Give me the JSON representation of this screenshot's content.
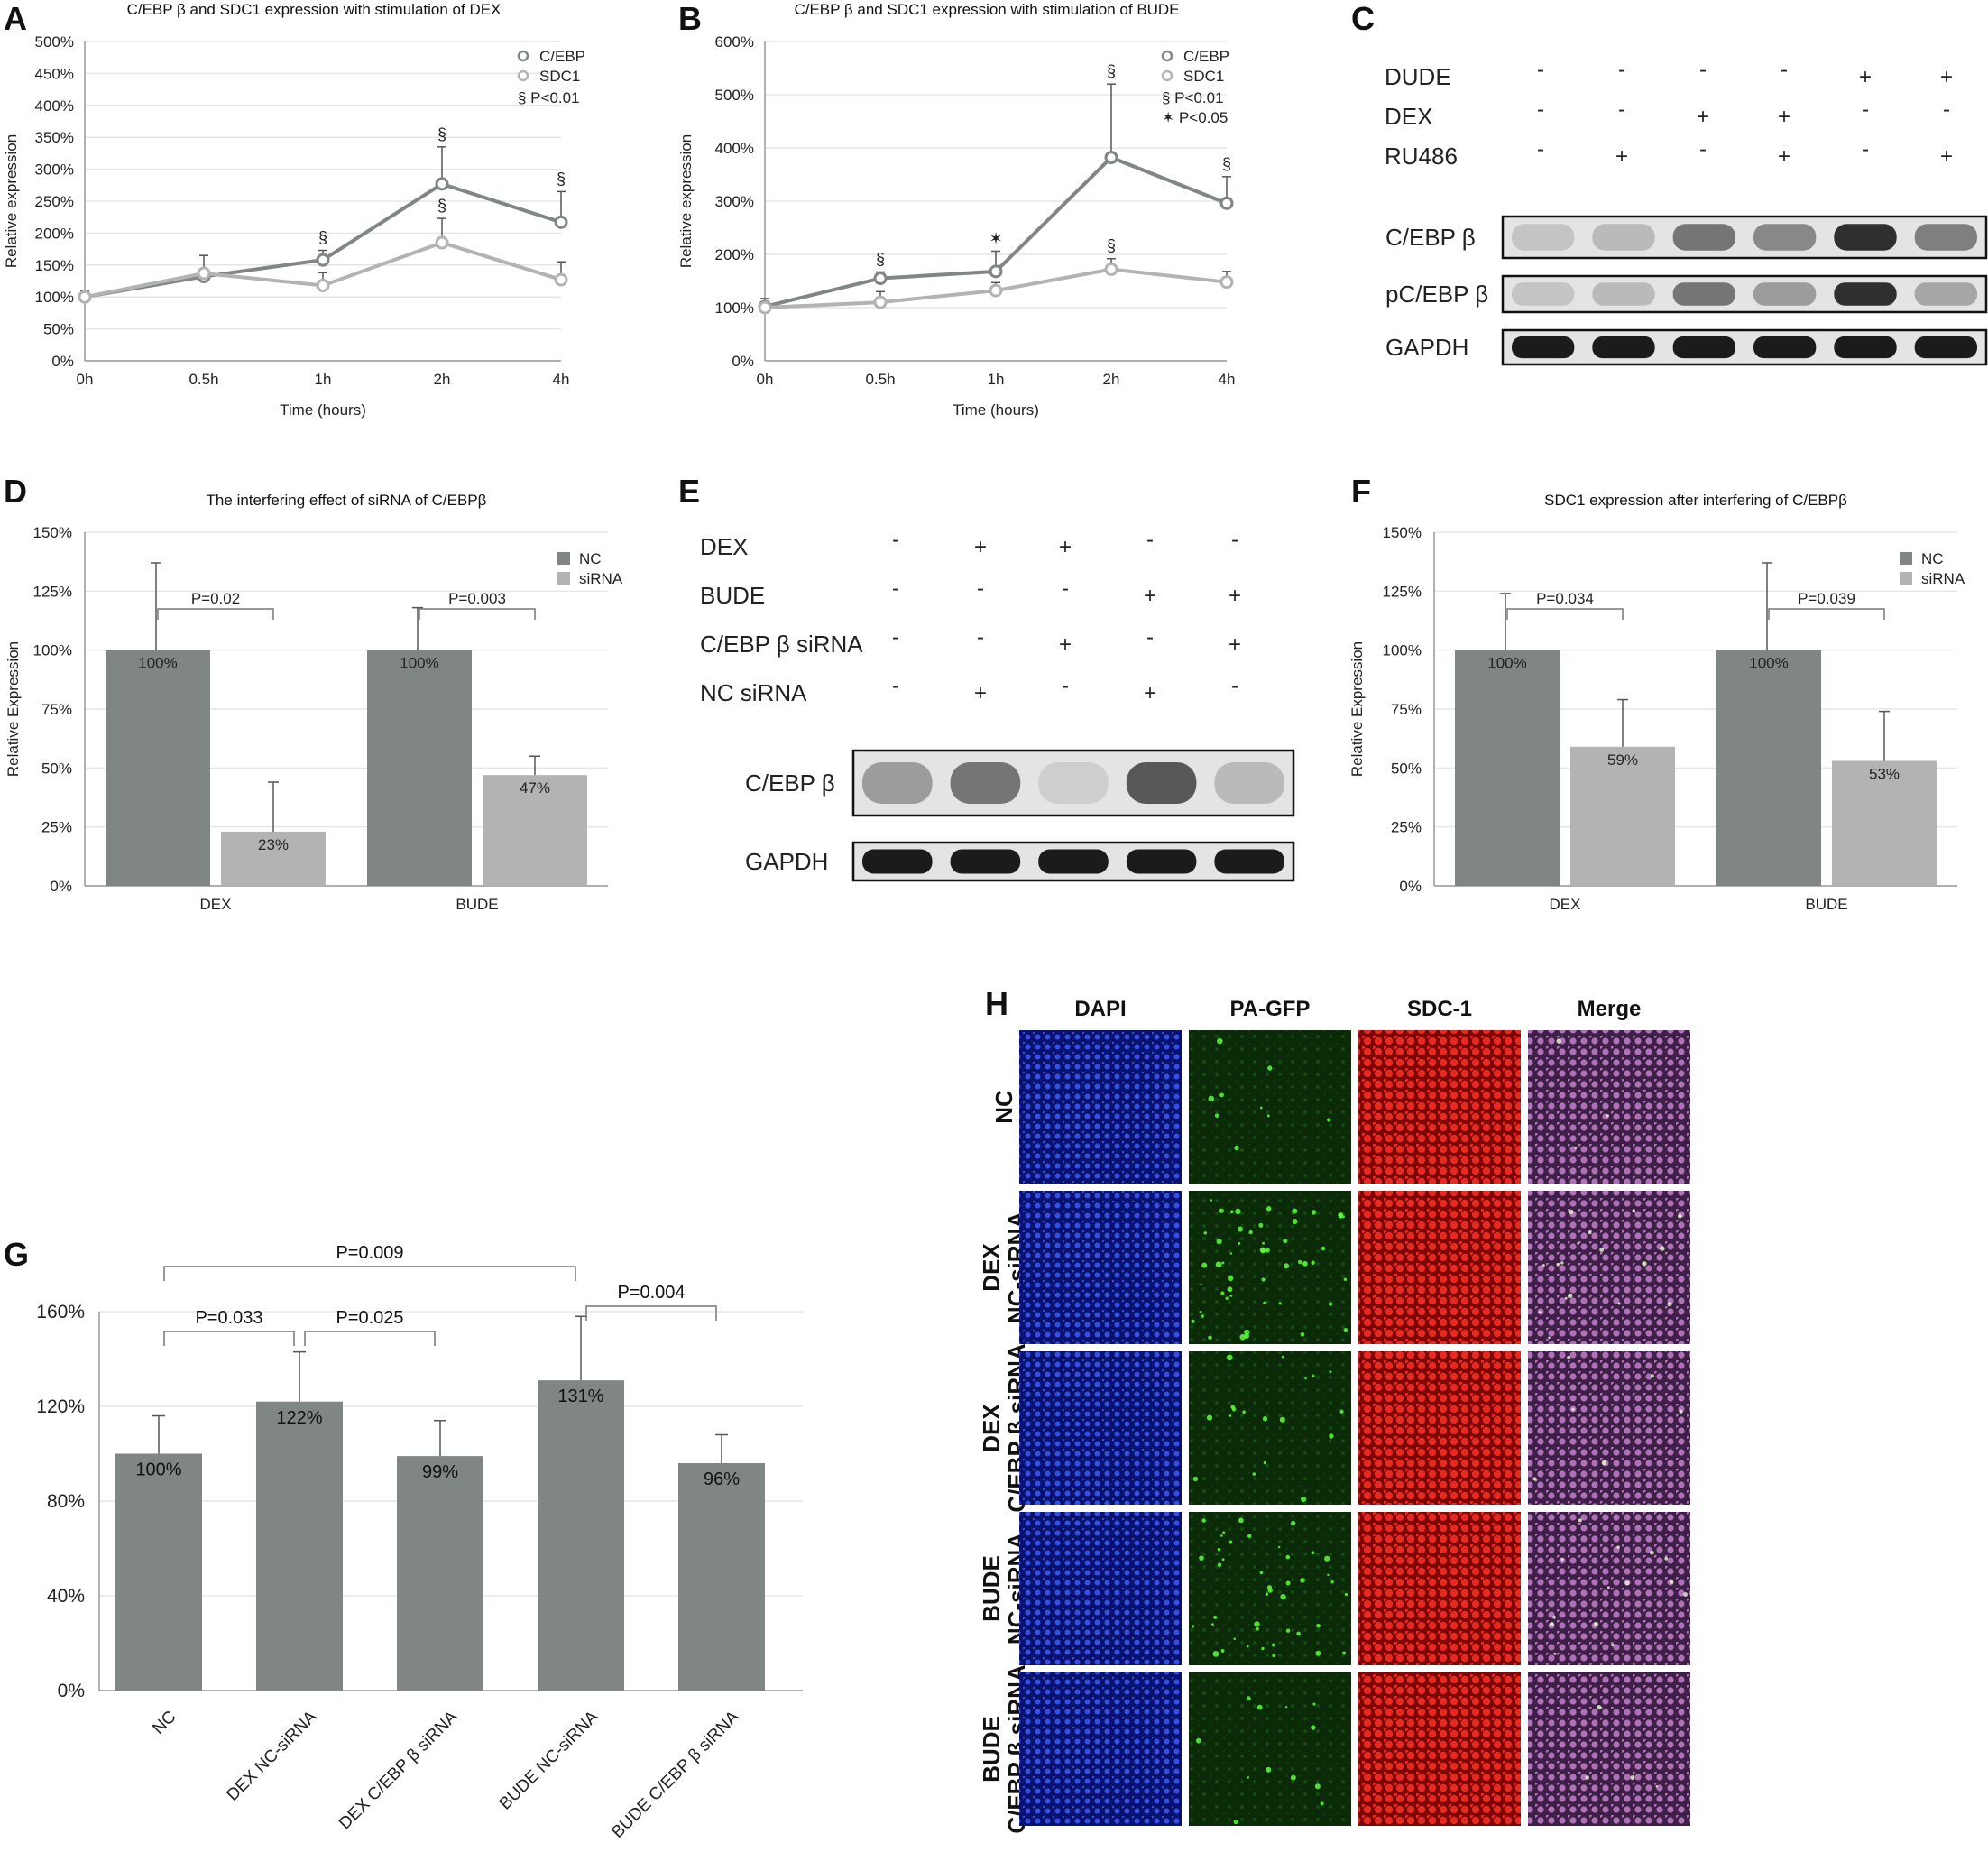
{
  "panels": {
    "A": "A",
    "B": "B",
    "C": "C",
    "D": "D",
    "E": "E",
    "F": "F",
    "G": "G",
    "H": "H"
  },
  "colors": {
    "dark": "#7f8683",
    "light": "#b3b3b3",
    "nuclei": "#1d2fb0",
    "gfp": "#1e7f1e",
    "sdc": "#c81a1a",
    "merge": "#8a4a7a"
  },
  "chart_data": [
    {
      "id": "A",
      "type": "line",
      "title": "C/EBP β and SDC1 expression with stimulation of DEX",
      "xlabel": "Time (hours)",
      "ylabel": "Relative expression",
      "categories": [
        "0h",
        "0.5h",
        "1h",
        "2h",
        "4h"
      ],
      "ylim": [
        0,
        500
      ],
      "yticks": [
        "0%",
        "50%",
        "100%",
        "150%",
        "200%",
        "250%",
        "300%",
        "350%",
        "400%",
        "450%",
        "500%"
      ],
      "series": [
        {
          "name": "C/EBP",
          "values": [
            100,
            132,
            158,
            277,
            217
          ],
          "errors": [
            10,
            8,
            15,
            58,
            48
          ],
          "marks": [
            "",
            "",
            "§",
            "§",
            "§"
          ],
          "color": "dark"
        },
        {
          "name": "SDC1",
          "values": [
            100,
            137,
            118,
            185,
            127
          ],
          "errors": [
            10,
            28,
            20,
            38,
            28
          ],
          "marks": [
            "",
            "",
            "",
            "§",
            ""
          ],
          "color": "light"
        }
      ],
      "legend_extra": [
        "§  P<0.01"
      ],
      "legend": "top-right"
    },
    {
      "id": "B",
      "type": "line",
      "title": "C/EBP β and SDC1 expression with stimulation of BUDE",
      "xlabel": "Time (hours)",
      "ylabel": "Relative expression",
      "categories": [
        "0h",
        "0.5h",
        "1h",
        "2h",
        "4h"
      ],
      "ylim": [
        0,
        600
      ],
      "yticks": [
        "0%",
        "100%",
        "200%",
        "300%",
        "400%",
        "500%",
        "600%"
      ],
      "series": [
        {
          "name": "C/EBP",
          "values": [
            102,
            155,
            168,
            382,
            296
          ],
          "errors": [
            15,
            12,
            38,
            138,
            50
          ],
          "marks": [
            "",
            "§",
            "*",
            "§",
            "§"
          ],
          "color": "dark"
        },
        {
          "name": "SDC1",
          "values": [
            100,
            110,
            132,
            172,
            148
          ],
          "errors": [
            10,
            20,
            15,
            20,
            20
          ],
          "marks": [
            "",
            "",
            "",
            "§",
            ""
          ],
          "color": "light"
        }
      ],
      "legend_extra": [
        "§  P<0.01",
        "*  P<0.05"
      ],
      "legend": "top-right"
    },
    {
      "id": "D",
      "type": "bar",
      "title": "The interfering effect of siRNA of C/EBPβ",
      "ylabel": "Relative Expression",
      "categories": [
        "DEX",
        "BUDE"
      ],
      "ylim": [
        0,
        150
      ],
      "yticks": [
        "0%",
        "25%",
        "50%",
        "75%",
        "100%",
        "125%",
        "150%"
      ],
      "series": [
        {
          "name": "NC",
          "values": [
            100,
            100
          ],
          "errors": [
            37,
            18
          ],
          "labels": [
            "100%",
            "100%"
          ],
          "color": "dark"
        },
        {
          "name": "siRNA",
          "values": [
            23,
            47
          ],
          "errors": [
            21,
            8
          ],
          "labels": [
            "23%",
            "47%"
          ],
          "color": "light"
        }
      ],
      "pvalues": [
        "P=0.02",
        "P=0.003"
      ],
      "legend": "top-right"
    },
    {
      "id": "F",
      "type": "bar",
      "title": "SDC1 expression after interfering of C/EBPβ",
      "ylabel": "Relative Expression",
      "categories": [
        "DEX",
        "BUDE"
      ],
      "ylim": [
        0,
        150
      ],
      "yticks": [
        "0%",
        "25%",
        "50%",
        "75%",
        "100%",
        "125%",
        "150%"
      ],
      "series": [
        {
          "name": "NC",
          "values": [
            100,
            100
          ],
          "errors": [
            24,
            37
          ],
          "labels": [
            "100%",
            "100%"
          ],
          "color": "dark"
        },
        {
          "name": "siRNA",
          "values": [
            59,
            53
          ],
          "errors": [
            20,
            21
          ],
          "labels": [
            "59%",
            "53%"
          ],
          "color": "light"
        }
      ],
      "pvalues": [
        "P=0.034",
        "P=0.039"
      ],
      "legend": "top-right"
    },
    {
      "id": "G",
      "type": "bar",
      "categories": [
        "NC",
        "DEX NC-siRNA",
        "DEX C/EBP β siRNA",
        "BUDE NC-siRNA",
        "BUDE C/EBP β siRNA"
      ],
      "ylim": [
        0,
        160
      ],
      "yticks": [
        "0%",
        "40%",
        "80%",
        "120%",
        "160%"
      ],
      "series": [
        {
          "values": [
            100,
            122,
            99,
            131,
            96
          ],
          "errors": [
            16,
            21,
            15,
            27,
            12
          ],
          "labels": [
            "100%",
            "122%",
            "99%",
            "131%",
            "96%"
          ],
          "color": "dark"
        }
      ],
      "brackets": [
        {
          "label": "P=0.009",
          "from": 0,
          "to": 3,
          "level": 3
        },
        {
          "label": "P=0.033",
          "from": 0,
          "to": 1,
          "level": 1
        },
        {
          "label": "P=0.025",
          "from": 1,
          "to": 2,
          "level": 1
        },
        {
          "label": "P=0.004",
          "from": 3,
          "to": 4,
          "level": 2
        }
      ]
    }
  ],
  "blotC": {
    "conditions": [
      {
        "label": "DUDE",
        "signs": [
          "-",
          "-",
          "-",
          "-",
          "+",
          "+"
        ]
      },
      {
        "label": "DEX",
        "signs": [
          "-",
          "-",
          "+",
          "+",
          "-",
          "-"
        ]
      },
      {
        "label": "RU486",
        "signs": [
          "-",
          "+",
          "-",
          "+",
          "-",
          "+"
        ]
      }
    ],
    "bands": [
      {
        "label": "C/EBP β",
        "intensity": [
          0.15,
          0.2,
          0.55,
          0.45,
          0.9,
          0.5
        ]
      },
      {
        "label": "pC/EBP β",
        "intensity": [
          0.15,
          0.2,
          0.55,
          0.35,
          0.9,
          0.3
        ]
      },
      {
        "label": "GAPDH",
        "intensity": [
          1,
          1,
          1,
          1,
          1,
          1
        ]
      }
    ]
  },
  "blotE": {
    "conditions": [
      {
        "label": "DEX",
        "signs": [
          "-",
          "+",
          "+",
          "-",
          "-"
        ]
      },
      {
        "label": "BUDE",
        "signs": [
          "-",
          "-",
          "-",
          "+",
          "+"
        ]
      },
      {
        "label": "C/EBP β siRNA",
        "signs": [
          "-",
          "-",
          "+",
          "-",
          "+"
        ]
      },
      {
        "label": "NC siRNA",
        "signs": [
          "-",
          "+",
          "-",
          "+",
          "-"
        ]
      }
    ],
    "bands": [
      {
        "label": "C/EBP β",
        "intensity": [
          0.35,
          0.55,
          0.1,
          0.7,
          0.2
        ]
      },
      {
        "label": "GAPDH",
        "intensity": [
          1,
          1,
          1,
          1,
          1
        ]
      }
    ]
  },
  "microscopy": {
    "columns": [
      "DAPI",
      "PA-GFP",
      "SDC-1",
      "Merge"
    ],
    "rows": [
      {
        "line1": "",
        "line2": "NC",
        "gfp": 0.15
      },
      {
        "line1": "DEX",
        "line2": "NC-siRNA",
        "gfp": 0.85
      },
      {
        "line1": "DEX",
        "line2": "C/EBP β siRNA",
        "gfp": 0.3
      },
      {
        "line1": "BUDE",
        "line2": "NC-siRNA",
        "gfp": 0.7
      },
      {
        "line1": "BUDE",
        "line2": "C/EBP β siRNA",
        "gfp": 0.2
      }
    ]
  }
}
